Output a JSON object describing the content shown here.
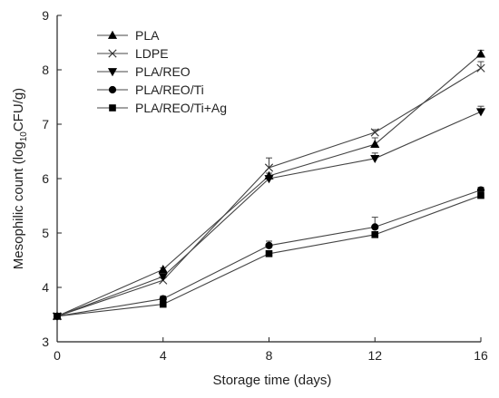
{
  "chart_data": {
    "type": "line",
    "xlabel": "Storage time (days)",
    "ylabel_main": "Mesophilic count (log",
    "ylabel_sub": "10",
    "ylabel_tail": "CFU/g)",
    "xlim": [
      0,
      16
    ],
    "ylim": [
      3,
      9
    ],
    "x_ticks": [
      0,
      4,
      8,
      12,
      16
    ],
    "y_ticks": [
      3,
      4,
      5,
      6,
      7,
      8,
      9
    ],
    "grid": false,
    "legend_position": "top-left",
    "x": [
      0,
      4,
      8,
      12,
      16
    ],
    "series": [
      {
        "name": "PLA",
        "marker": "triangle-up",
        "values": [
          3.47,
          4.33,
          6.05,
          6.63,
          8.29
        ],
        "errors": [
          0.03,
          0.03,
          0.05,
          0.12,
          0.07
        ]
      },
      {
        "name": "LDPE",
        "marker": "x",
        "values": [
          3.47,
          4.13,
          6.2,
          6.85,
          8.03
        ],
        "errors": [
          0.03,
          0.05,
          0.18,
          0.05,
          0.12
        ]
      },
      {
        "name": "PLA/REO",
        "marker": "triangle-down",
        "values": [
          3.47,
          4.2,
          6.0,
          6.37,
          7.23
        ],
        "errors": [
          0.03,
          0.05,
          0.05,
          0.1,
          0.1
        ]
      },
      {
        "name": "PLA/REO/Ti",
        "marker": "circle",
        "values": [
          3.47,
          3.79,
          4.77,
          5.11,
          5.79
        ],
        "errors": [
          0.03,
          0.05,
          0.08,
          0.18,
          0.05
        ]
      },
      {
        "name": "PLA/REO/Ti+Ag",
        "marker": "square",
        "values": [
          3.47,
          3.69,
          4.62,
          4.97,
          5.69
        ],
        "errors": [
          0.03,
          0.04,
          0.05,
          0.05,
          0.06
        ]
      }
    ]
  }
}
